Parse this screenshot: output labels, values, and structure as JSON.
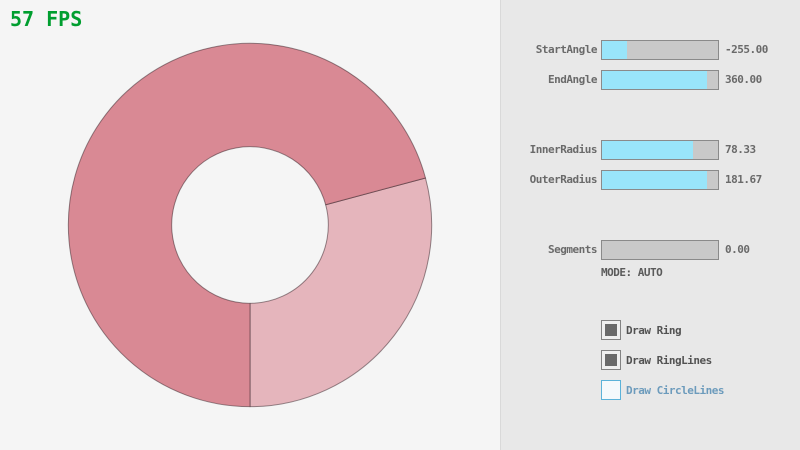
{
  "fps_label": "57 FPS",
  "panel": {
    "sliders": [
      {
        "label": "StartAngle",
        "value": "-255.00",
        "fill_pct": 21.7
      },
      {
        "label": "EndAngle",
        "value": "360.00",
        "fill_pct": 90.5
      },
      {
        "label": "InnerRadius",
        "value": "78.33",
        "fill_pct": 78.3
      },
      {
        "label": "OuterRadius",
        "value": "181.67",
        "fill_pct": 90.8
      },
      {
        "label": "Segments",
        "value": "0.00",
        "fill_pct": 0
      }
    ],
    "mode_label": "MODE: AUTO",
    "checkboxes": [
      {
        "label": "Draw Ring",
        "checked": true,
        "focused": false
      },
      {
        "label": "Draw RingLines",
        "checked": true,
        "focused": false
      },
      {
        "label": "Draw CircleLines",
        "checked": false,
        "focused": true
      }
    ]
  },
  "ring": {
    "start_angle": -255.0,
    "end_angle": 360.0,
    "inner_radius": 78.33,
    "outer_radius": 181.67,
    "segments": 0,
    "color_single_pass": "#e5b5bc",
    "color_double_pass": "#d98994",
    "outline_color": "rgba(50,30,35,0.5)"
  },
  "colors": {
    "background": "#f5f5f5",
    "panel_bg": "#e8e8e8",
    "panel_divider": "#d9d9d9",
    "slider_track": "#c9c9c9",
    "slider_border": "#8a8a8a",
    "slider_fill": "#99e5fa",
    "label_text": "#6a6a6a",
    "checkbox_border": "#838383",
    "checkbox_check": "#6a6a6a",
    "focused_border": "#5bb2d9",
    "focused_text": "#6c9bbc",
    "fps_green": "#009e2f"
  }
}
